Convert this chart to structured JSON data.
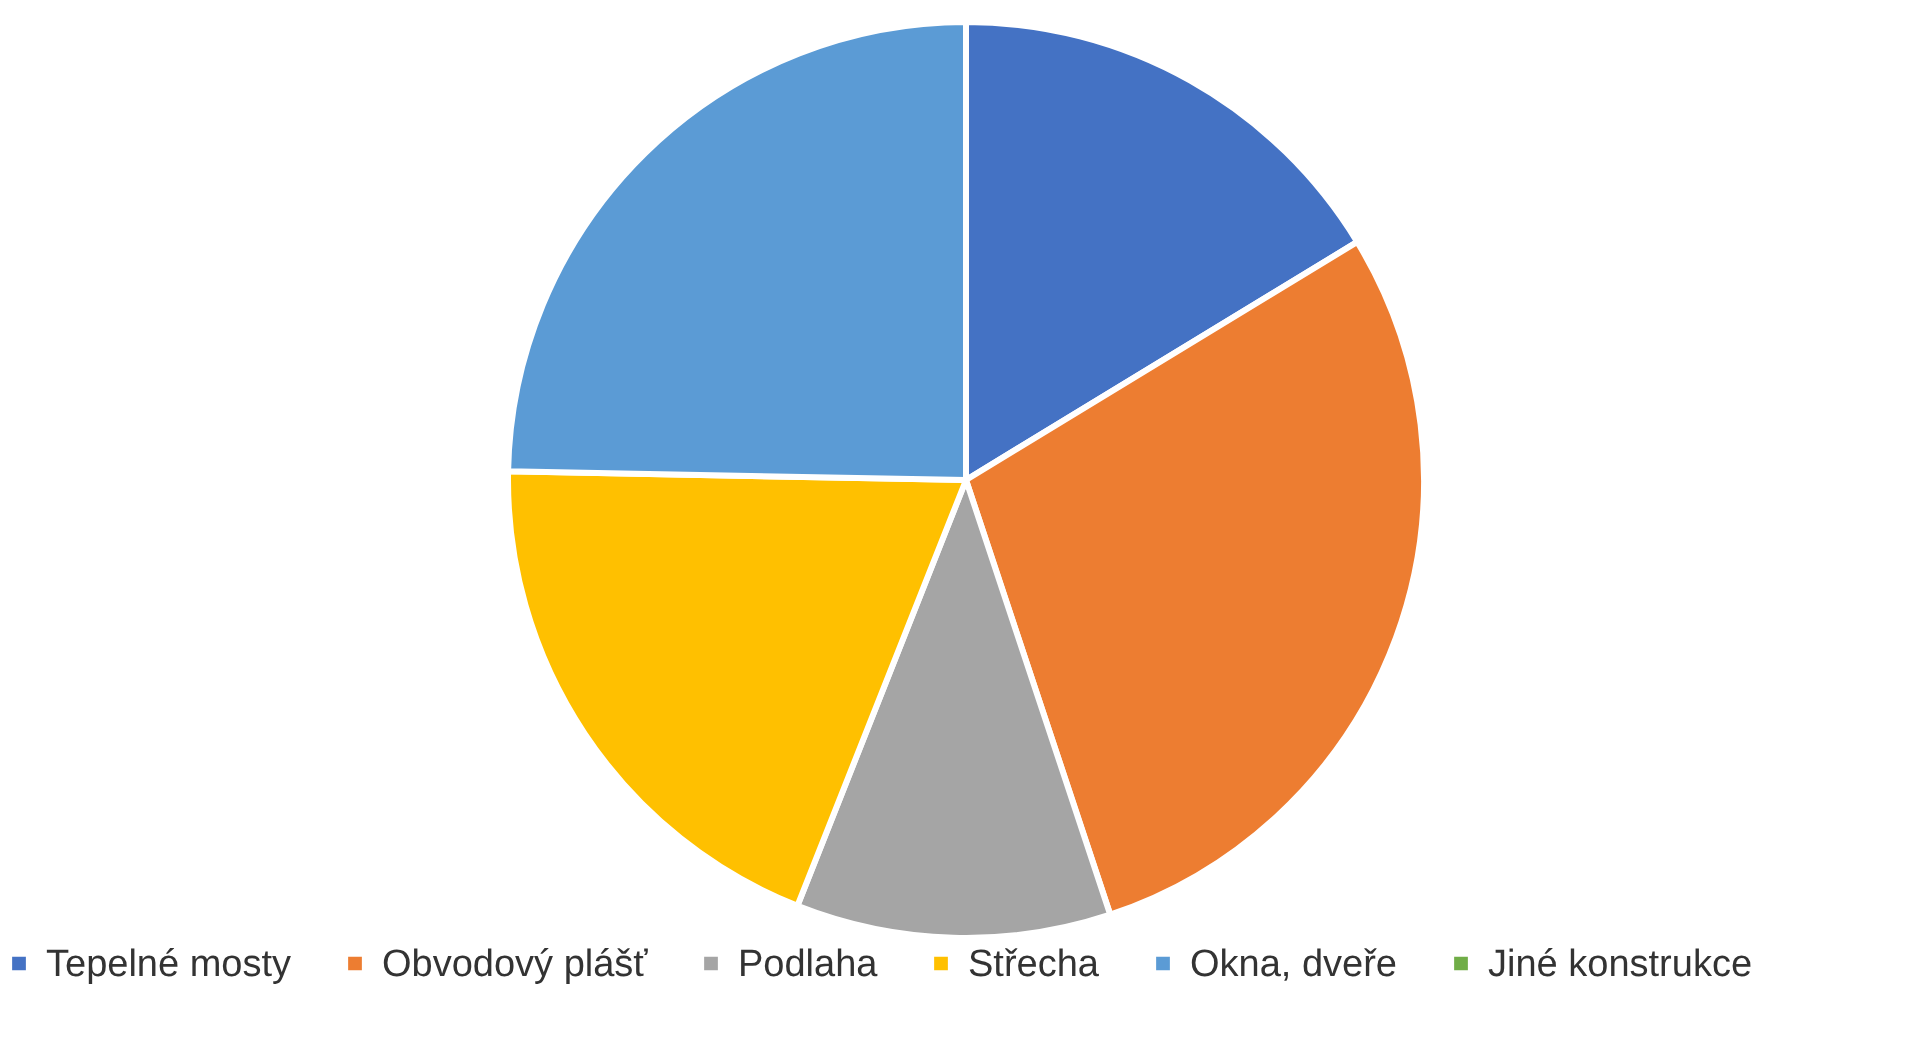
{
  "chart_data": {
    "type": "pie",
    "categories": [
      "Tepelné mosty",
      "Obvodový plášť",
      "Podlaha",
      "Střecha",
      "Okna, dveře",
      "Jiné konstrukce"
    ],
    "values": [
      16.3,
      28.6,
      11.1,
      19.3,
      24.7,
      0
    ],
    "colors": [
      "#4472c4",
      "#ed7d31",
      "#a5a5a5",
      "#ffc000",
      "#5b9bd5",
      "#70ad47"
    ],
    "legend": "bottom"
  }
}
